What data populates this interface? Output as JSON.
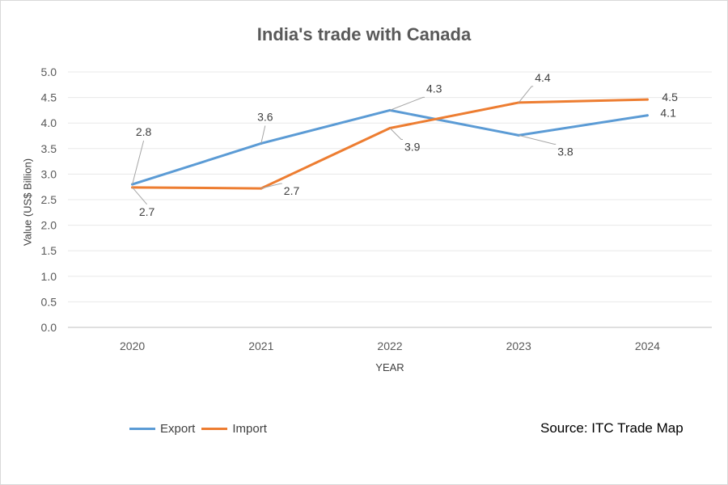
{
  "chart_data": {
    "type": "line",
    "title": "India's trade with Canada",
    "xlabel": "YEAR",
    "ylabel": "Value (US$ Billion)",
    "categories": [
      "2020",
      "2021",
      "2022",
      "2023",
      "2024"
    ],
    "ylim": [
      0,
      5
    ],
    "yticks": [
      "0.0",
      "0.5",
      "1.0",
      "1.5",
      "2.0",
      "2.5",
      "3.0",
      "3.5",
      "4.0",
      "4.5",
      "5.0"
    ],
    "grid": true,
    "legend_position": "bottom-left",
    "series": [
      {
        "name": "Export",
        "color": "#5b9bd5",
        "values": [
          2.8,
          3.6,
          4.25,
          3.76,
          4.15
        ],
        "labels": [
          "2.8",
          "3.6",
          "4.3",
          "3.8",
          "4.1"
        ]
      },
      {
        "name": "Import",
        "color": "#ed7d31",
        "values": [
          2.74,
          2.72,
          3.9,
          4.4,
          4.46
        ],
        "labels": [
          "2.7",
          "2.7",
          "3.9",
          "4.4",
          "4.5"
        ]
      }
    ],
    "source": "Source: ITC Trade Map"
  }
}
